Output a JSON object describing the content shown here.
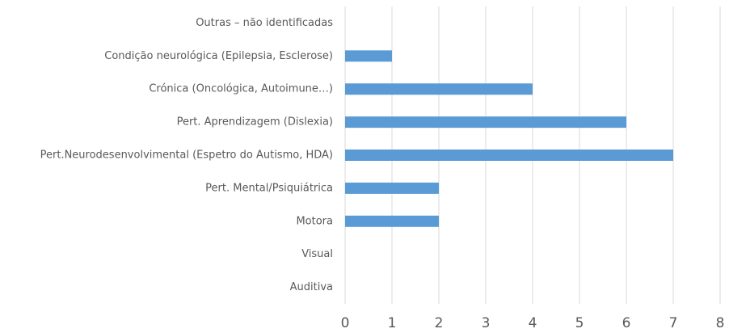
{
  "chart_data": {
    "type": "hbar",
    "categories": [
      "Outras – não identificadas",
      "Condição neurológica (Epilepsia, Esclerose)",
      "Crónica (Oncológica, Autoimune…)",
      "Pert. Aprendizagem (Dislexia)",
      "Pert.Neurodesenvolvimental (Espetro do Autismo, HDA)",
      "Pert. Mental/Psiquiátrica",
      "Motora",
      "Visual",
      "Auditiva"
    ],
    "values": [
      0,
      1,
      4,
      6,
      7,
      2,
      2,
      0,
      0
    ],
    "color": "#5b9bd5",
    "xlim": [
      0,
      8
    ],
    "xticks": [
      0,
      1,
      2,
      3,
      4,
      5,
      6,
      7,
      8
    ],
    "grid": true
  }
}
